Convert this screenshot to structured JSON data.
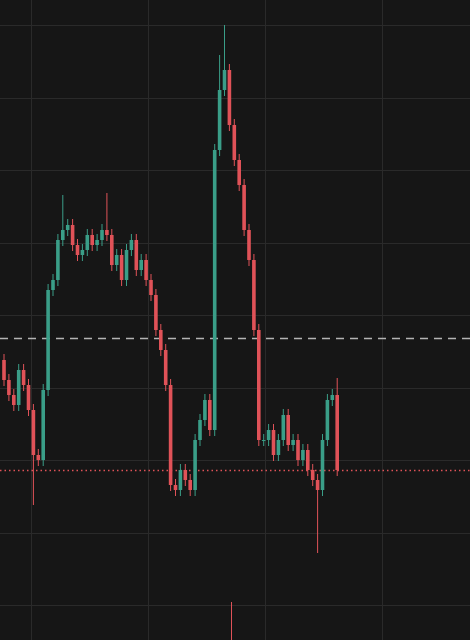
{
  "chart_data": {
    "type": "candlestick",
    "open": [
      280,
      260,
      245,
      235,
      270,
      255,
      230,
      185,
      180,
      250,
      350,
      360,
      400,
      410,
      415,
      395,
      385,
      390,
      405,
      395,
      400,
      410,
      405,
      375,
      385,
      360,
      390,
      400,
      370,
      380,
      360,
      345,
      310,
      290,
      255,
      155,
      150,
      170,
      160,
      150,
      200,
      220,
      240,
      210,
      490,
      550,
      570,
      515,
      480,
      455,
      410,
      380,
      310,
      200,
      200,
      210,
      185,
      200,
      225,
      195,
      200,
      180,
      190,
      170,
      160,
      150,
      200,
      240,
      245
    ],
    "high": [
      286,
      266,
      251,
      276,
      276,
      261,
      236,
      191,
      256,
      356,
      366,
      406,
      445,
      421,
      421,
      401,
      396,
      411,
      411,
      406,
      416,
      447,
      411,
      391,
      391,
      396,
      406,
      406,
      386,
      386,
      366,
      351,
      316,
      296,
      261,
      161,
      176,
      176,
      166,
      206,
      226,
      246,
      246,
      496,
      585,
      615,
      576,
      521,
      486,
      461,
      416,
      386,
      316,
      206,
      216,
      216,
      206,
      231,
      231,
      206,
      206,
      196,
      196,
      176,
      166,
      206,
      246,
      251,
      262
    ],
    "low": [
      254,
      239,
      229,
      229,
      249,
      224,
      135,
      174,
      174,
      244,
      344,
      354,
      394,
      404,
      389,
      379,
      379,
      384,
      389,
      389,
      394,
      399,
      369,
      369,
      354,
      354,
      384,
      364,
      364,
      354,
      339,
      304,
      284,
      249,
      149,
      144,
      144,
      154,
      144,
      144,
      194,
      214,
      204,
      204,
      484,
      544,
      509,
      474,
      449,
      404,
      374,
      304,
      194,
      194,
      194,
      179,
      179,
      194,
      189,
      189,
      174,
      174,
      164,
      154,
      87,
      144,
      194,
      234,
      164
    ],
    "close": [
      260,
      245,
      235,
      270,
      255,
      230,
      185,
      180,
      250,
      350,
      360,
      400,
      410,
      415,
      395,
      385,
      390,
      405,
      395,
      400,
      410,
      405,
      375,
      385,
      360,
      390,
      400,
      370,
      380,
      360,
      345,
      310,
      290,
      255,
      155,
      150,
      170,
      160,
      150,
      200,
      220,
      240,
      210,
      490,
      550,
      570,
      515,
      480,
      455,
      410,
      380,
      310,
      200,
      200,
      210,
      185,
      200,
      225,
      195,
      200,
      180,
      190,
      170,
      160,
      150,
      200,
      240,
      245,
      170
    ],
    "ylim": [
      0,
      640
    ],
    "up_color": "#3a9e88",
    "down_color": "#e05258",
    "reference_lines": [
      {
        "value": 302,
        "color": "#b4b4b4",
        "style": "dashed"
      },
      {
        "value": 170,
        "color": "#e05258",
        "style": "dotted"
      }
    ]
  }
}
